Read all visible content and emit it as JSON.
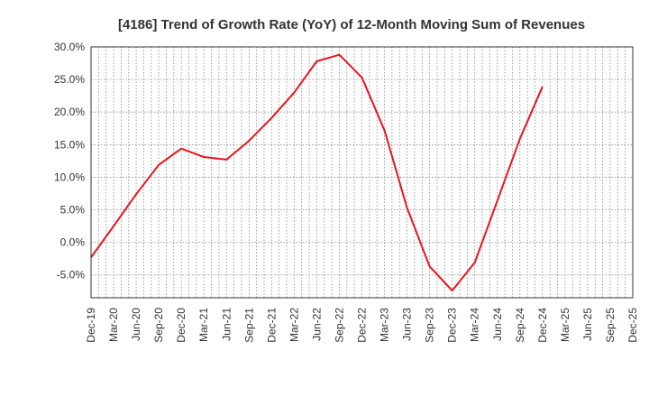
{
  "chart_data": {
    "type": "line",
    "title": "[4186]  Trend of Growth Rate (YoY) of 12-Month Moving Sum of Revenues",
    "xlabel": "",
    "ylabel": "",
    "x_tick_labels": [
      "Dec-19",
      "Mar-20",
      "Jun-20",
      "Sep-20",
      "Dec-20",
      "Mar-21",
      "Jun-21",
      "Sep-21",
      "Dec-21",
      "Mar-22",
      "Jun-22",
      "Sep-22",
      "Dec-22",
      "Mar-23",
      "Jun-23",
      "Sep-23",
      "Dec-23",
      "Mar-24",
      "Jun-24",
      "Sep-24",
      "Dec-24",
      "Mar-25",
      "Jun-25",
      "Sep-25",
      "Dec-25"
    ],
    "y_tick_labels": [
      "30.0%",
      "25.0%",
      "20.0%",
      "15.0%",
      "10.0%",
      "5.0%",
      "0.0%",
      "-5.0%"
    ],
    "ylim": [
      -8.5,
      30.0
    ],
    "y_ticks": [
      30,
      25,
      20,
      15,
      10,
      5,
      0,
      -5
    ],
    "grid": true,
    "series": [
      {
        "color": "#e8141c",
        "x": [
          "Dec-19",
          "Mar-20",
          "Jun-20",
          "Sep-20",
          "Dec-20",
          "Mar-21",
          "Jun-21",
          "Sep-21",
          "Dec-21",
          "Mar-22",
          "Jun-22",
          "Sep-22",
          "Dec-22",
          "Mar-23",
          "Jun-23",
          "Sep-23",
          "Dec-23",
          "Mar-24",
          "Jun-24",
          "Sep-24",
          "Dec-24"
        ],
        "values": [
          -2.3,
          2.5,
          7.4,
          11.9,
          14.4,
          13.1,
          12.7,
          15.6,
          19.1,
          23.0,
          27.8,
          28.8,
          25.3,
          17.2,
          5.3,
          -3.7,
          -7.4,
          -3.1,
          6.4,
          15.9,
          23.9
        ]
      }
    ]
  }
}
